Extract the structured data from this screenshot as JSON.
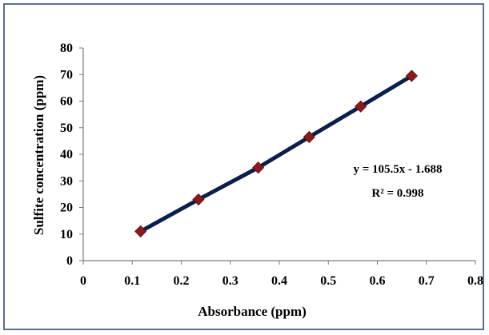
{
  "chart_data": {
    "type": "scatter",
    "xlabel": "Absorbance (ppm)",
    "ylabel": "Sulfite  concentration (ppm)",
    "xlim": [
      0,
      0.8
    ],
    "ylim": [
      0,
      80
    ],
    "x_ticks": [
      "0",
      "0.1",
      "0.2",
      "0.3",
      "0.4",
      "0.5",
      "0.6",
      "0.7",
      "0.8"
    ],
    "y_ticks": [
      "0",
      "10",
      "20",
      "30",
      "40",
      "50",
      "60",
      "70",
      "80"
    ],
    "grid": false,
    "series": [
      {
        "x": [
          0.117,
          0.235,
          0.357,
          0.461,
          0.566,
          0.67
        ],
        "y": [
          11,
          23,
          35,
          46.5,
          58,
          69.5
        ],
        "marker": "diamond",
        "marker_color": "#8b1a1a",
        "line_color": "#0b1f4a"
      }
    ],
    "annotations": {
      "equation": "y = 105.5x - 1.688",
      "r_squared": "R² = 0.998"
    }
  }
}
